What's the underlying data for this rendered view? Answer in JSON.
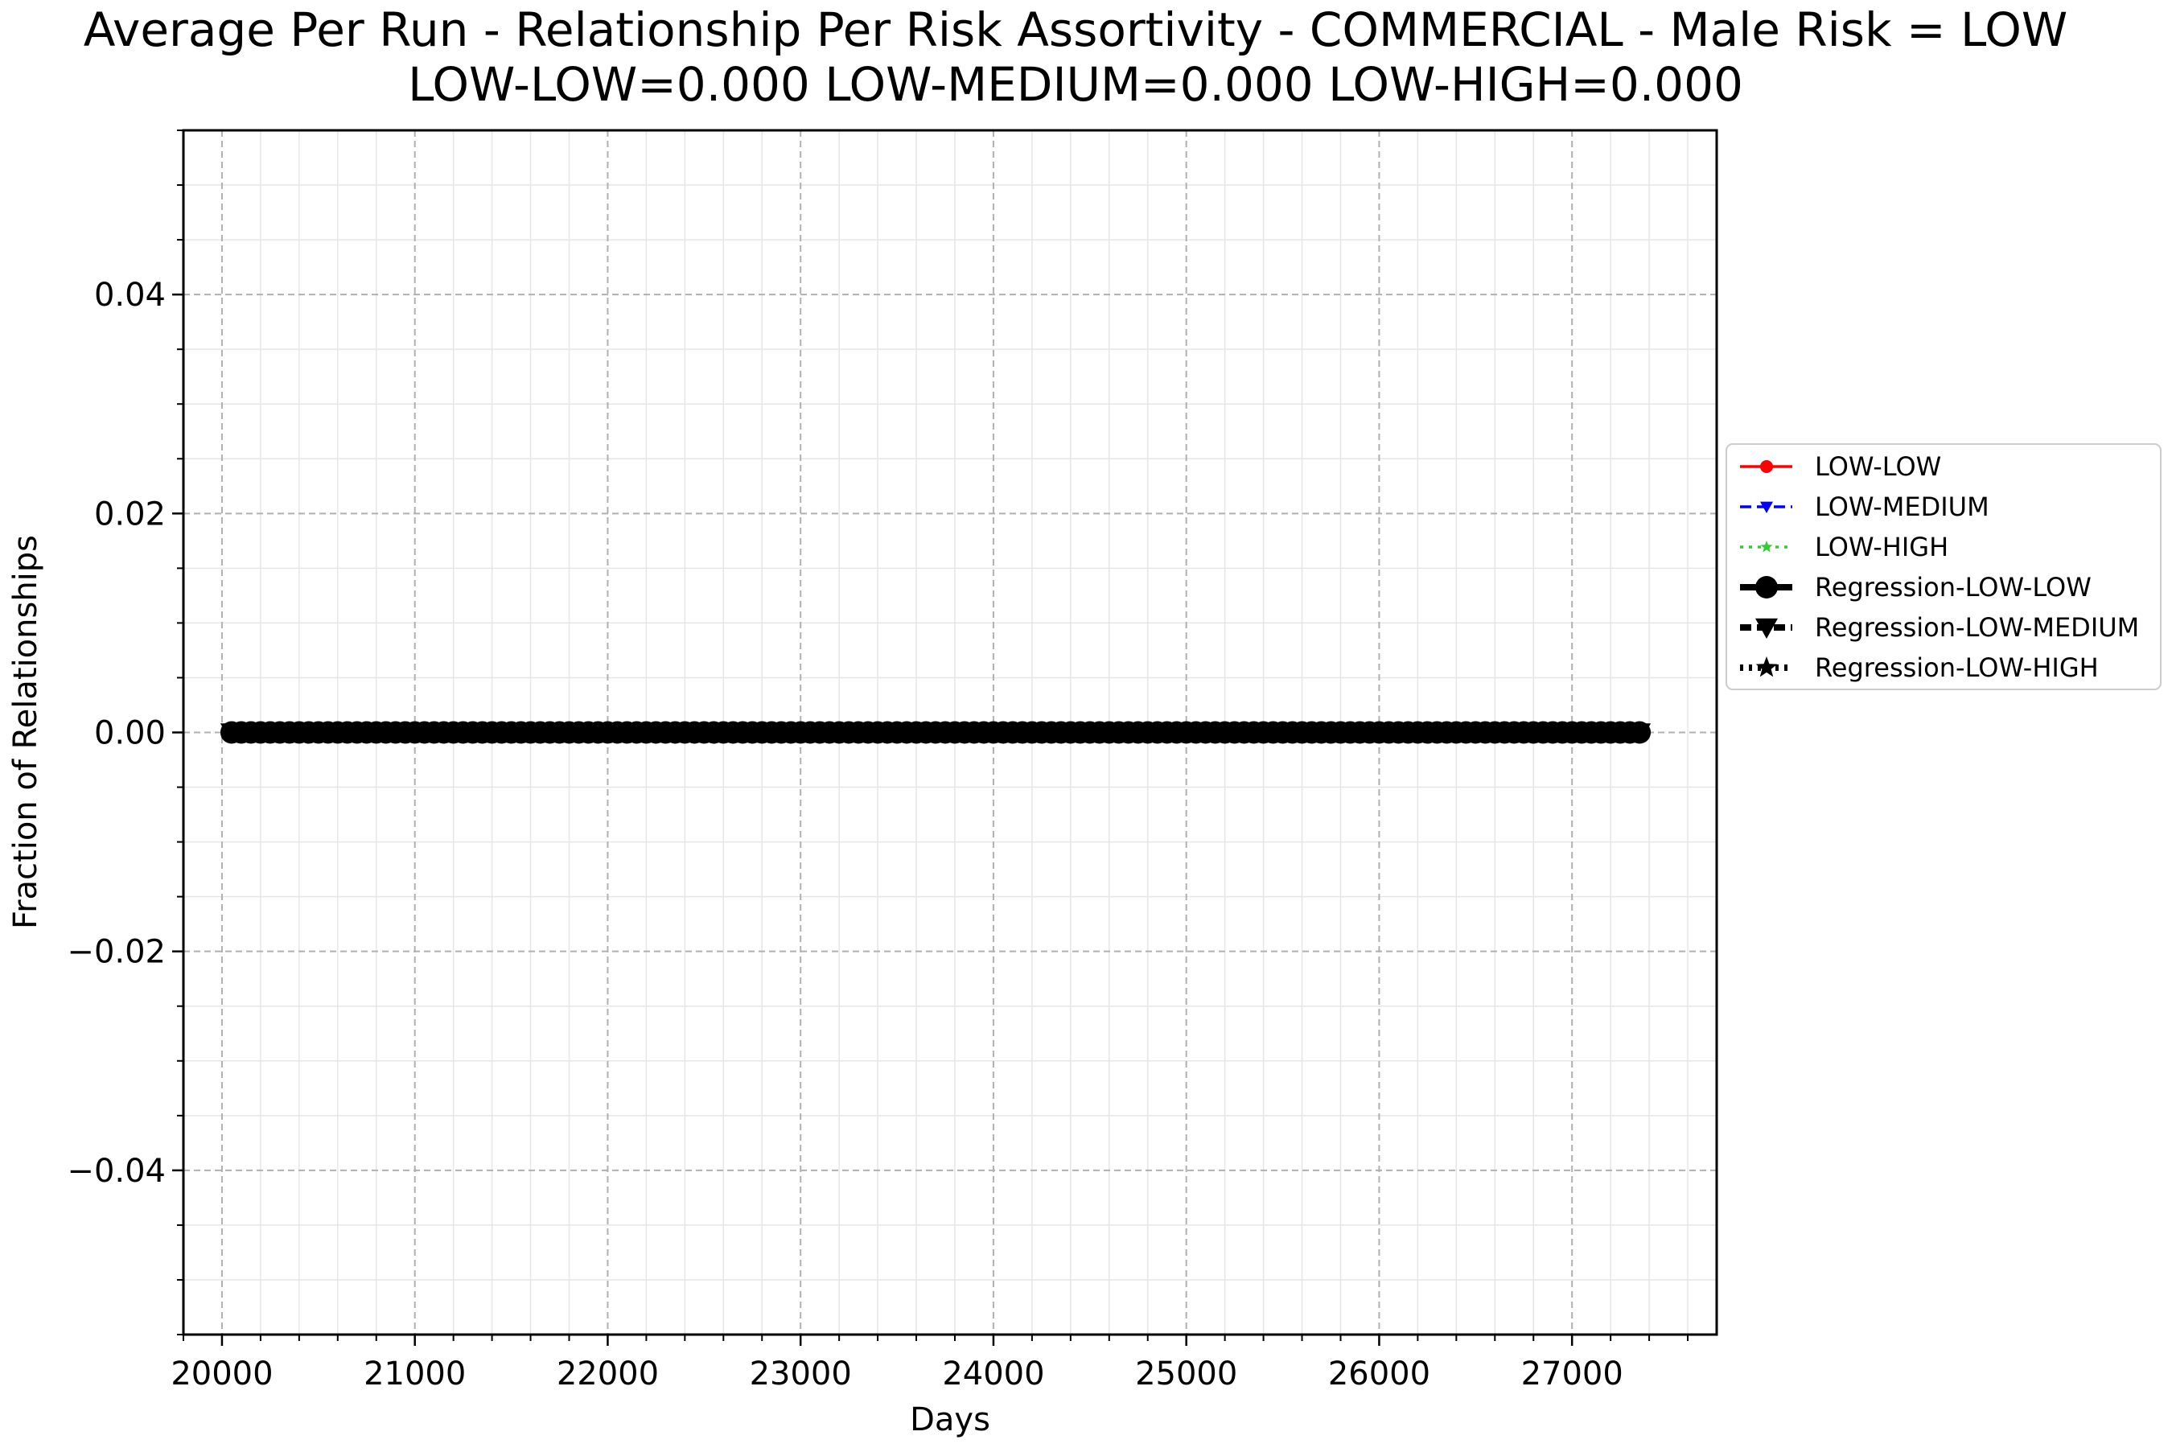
{
  "chart_data": {
    "type": "line",
    "title": "Average Per Run - Relationship Per Risk Assortivity - COMMERCIAL - Male Risk = LOW",
    "subtitle": "LOW-LOW=0.000 LOW-MEDIUM=0.000 LOW-HIGH=0.000",
    "xlabel": "Days",
    "ylabel": "Fraction of Relationships",
    "xlim": [
      19800,
      27750
    ],
    "ylim": [
      -0.055,
      0.055
    ],
    "x_ticks": [
      20000,
      21000,
      22000,
      23000,
      24000,
      25000,
      26000,
      27000
    ],
    "x_tick_labels": [
      "20000",
      "21000",
      "22000",
      "23000",
      "24000",
      "25000",
      "26000",
      "27000"
    ],
    "y_ticks": [
      -0.04,
      -0.02,
      0.0,
      0.02,
      0.04
    ],
    "y_tick_labels": [
      "−0.04",
      "−0.02",
      "0.00",
      "0.02",
      "0.04"
    ],
    "grid": true,
    "legend_position": "right-outside",
    "x_range": [
      20050,
      27375
    ],
    "sample_step": 50,
    "series": [
      {
        "name": "LOW-LOW",
        "color": "#ff0000",
        "marker": "circle",
        "linestyle": "solid",
        "value": 0.0
      },
      {
        "name": "LOW-MEDIUM",
        "color": "#0000ff",
        "marker": "triangle-down",
        "linestyle": "dashed",
        "value": 0.0
      },
      {
        "name": "LOW-HIGH",
        "color": "#32cd32",
        "marker": "star",
        "linestyle": "dotted",
        "value": 0.0
      },
      {
        "name": "Regression-LOW-LOW",
        "color": "#000000",
        "marker": "circle",
        "linestyle": "solid",
        "value": 0.0
      },
      {
        "name": "Regression-LOW-MEDIUM",
        "color": "#000000",
        "marker": "triangle-down",
        "linestyle": "dashed",
        "value": 0.0
      },
      {
        "name": "Regression-LOW-HIGH",
        "color": "#000000",
        "marker": "star",
        "linestyle": "dotted",
        "value": 0.0
      }
    ]
  }
}
